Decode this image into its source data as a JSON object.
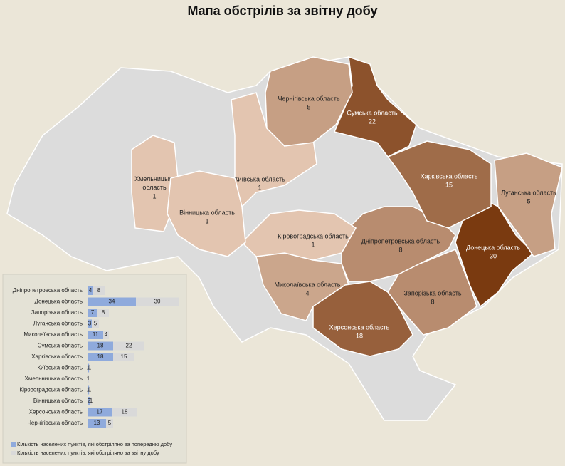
{
  "chart_data": {
    "type": "bar",
    "title": "Мапа обстрілів за звітну добу",
    "categories": [
      "Дніпропетровська область",
      "Донецька область",
      "Запорізька область",
      "Луганська область",
      "Миколаївська область",
      "Сумська область",
      "Харківська область",
      "Київська область",
      "Хмельницька область",
      "Кіровоградська область",
      "Вінницька область",
      "Херсонська область",
      "Чернігівська область"
    ],
    "series": [
      {
        "name": "Кількість населених пунктів, які обстріляно за попередню добу",
        "color": "#8faadc",
        "values": [
          4,
          34,
          7,
          3,
          11,
          18,
          18,
          1,
          null,
          1,
          2,
          17,
          13
        ]
      },
      {
        "name": "Кількість населених пунктів, які обстріляно за звітну добу",
        "color": "#d9d9d9",
        "values": [
          8,
          30,
          8,
          5,
          4,
          22,
          15,
          1,
          1,
          1,
          1,
          18,
          5
        ]
      }
    ]
  }
}
